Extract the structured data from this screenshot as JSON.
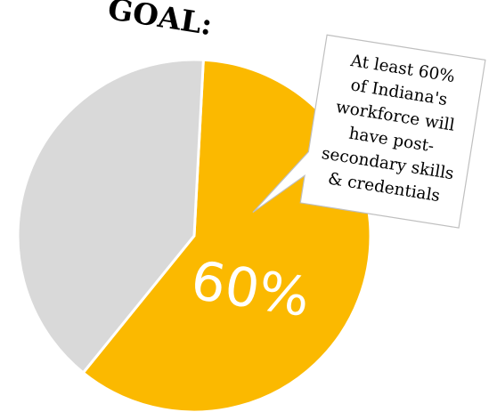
{
  "chart_data": {
    "type": "pie",
    "title": "GOAL:",
    "slices": [
      {
        "label": "60%",
        "value": 60,
        "color": "#fbb900"
      },
      {
        "value": 40,
        "color": "#d9d9d9"
      }
    ],
    "annotation": {
      "lines": [
        "At least 60%",
        "of Indiana's",
        "workforce will",
        "have post-",
        "secondary skills",
        "& credentials"
      ]
    }
  },
  "colors": {
    "goal_slice": "#fbb900",
    "rest_slice": "#d9d9d9",
    "slice_border": "#ffffff",
    "callout_border": "#bfbfbf"
  }
}
